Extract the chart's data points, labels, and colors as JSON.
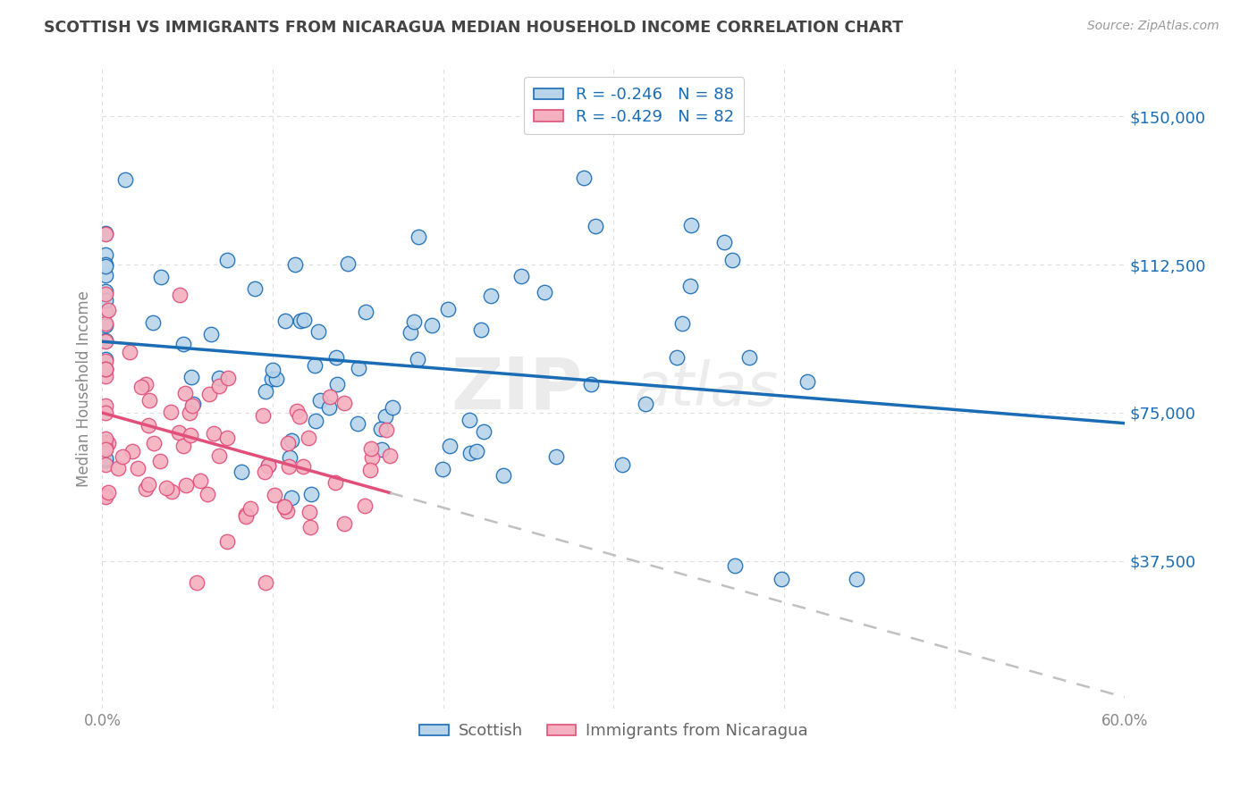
{
  "title": "SCOTTISH VS IMMIGRANTS FROM NICARAGUA MEDIAN HOUSEHOLD INCOME CORRELATION CHART",
  "source": "Source: ZipAtlas.com",
  "ylabel": "Median Household Income",
  "y_ticks": [
    0,
    37500,
    75000,
    112500,
    150000
  ],
  "y_tick_labels": [
    "",
    "$37,500",
    "$75,000",
    "$112,500",
    "$150,000"
  ],
  "xlim": [
    0.0,
    0.6
  ],
  "ylim": [
    0,
    162000
  ],
  "scottish_R": -0.246,
  "scottish_N": 88,
  "nicaragua_R": -0.429,
  "nicaragua_N": 82,
  "scottish_color": "#b8d4ea",
  "scottish_line_color": "#1a6db5",
  "nicaragua_color": "#f5b0bf",
  "nicaragua_line_color": "#e0507a",
  "nicaragua_dash_color": "#c0c0c0",
  "watermark_zip": "ZIP",
  "watermark_atlas": "atlas",
  "legend_scottish_label": "R = -0.246   N = 88",
  "legend_nicaragua_label": "R = -0.429   N = 82",
  "legend_bottom_scottish": "Scottish",
  "legend_bottom_nicaragua": "Immigrants from Nicaragua",
  "background_color": "#ffffff",
  "grid_color": "#dddddd",
  "title_color": "#444444",
  "source_color": "#999999",
  "ylabel_color": "#888888",
  "ytick_color": "#1a6db5",
  "xtick_color": "#888888"
}
